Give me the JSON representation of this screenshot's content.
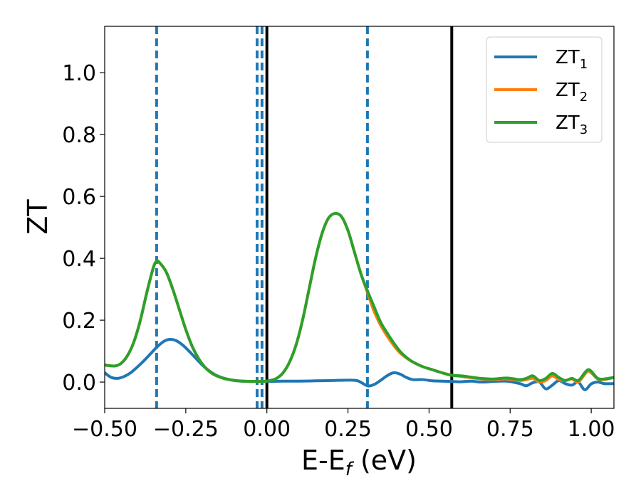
{
  "chart_data": {
    "type": "line",
    "xlabel": "E-E",
    "xlabel_sub": "f",
    "xlabel_unit": " (eV)",
    "ylabel": "ZT",
    "xlim": [
      -0.5,
      1.07
    ],
    "ylim": [
      -0.085,
      1.15
    ],
    "x_ticks": [
      -0.5,
      -0.25,
      0.0,
      0.25,
      0.5,
      0.75,
      1.0
    ],
    "x_tick_labels": [
      "−0.50",
      "−0.25",
      "0.00",
      "0.25",
      "0.50",
      "0.75",
      "1.00"
    ],
    "y_ticks": [
      0.0,
      0.2,
      0.4,
      0.6,
      0.8,
      1.0
    ],
    "y_tick_labels": [
      "0.0",
      "0.2",
      "0.4",
      "0.6",
      "0.8",
      "1.0"
    ],
    "grid": false,
    "legend_position": "top-right",
    "colors": {
      "ZT1": "#1f77b4",
      "ZT2": "#ff7f0e",
      "ZT3": "#2ca02c",
      "solid_line": "#000000",
      "dashed_line": "#1f77b4"
    },
    "solid_vlines": [
      0.0,
      0.57
    ],
    "dashed_vlines": [
      -0.34,
      -0.03,
      -0.015,
      0.31
    ],
    "series": [
      {
        "name": "ZT",
        "sub": "1",
        "color": "#1f77b4",
        "x": [
          -0.5,
          -0.48,
          -0.46,
          -0.44,
          -0.42,
          -0.4,
          -0.38,
          -0.36,
          -0.34,
          -0.32,
          -0.3,
          -0.28,
          -0.26,
          -0.24,
          -0.22,
          -0.2,
          -0.18,
          -0.16,
          -0.14,
          -0.12,
          -0.1,
          -0.08,
          -0.06,
          -0.04,
          -0.02,
          0.0,
          0.05,
          0.1,
          0.15,
          0.2,
          0.25,
          0.28,
          0.31,
          0.33,
          0.35,
          0.37,
          0.39,
          0.41,
          0.43,
          0.45,
          0.48,
          0.51,
          0.54,
          0.57,
          0.6,
          0.63,
          0.66,
          0.7,
          0.74,
          0.78,
          0.8,
          0.82,
          0.84,
          0.86,
          0.88,
          0.9,
          0.92,
          0.94,
          0.96,
          0.98,
          1.0,
          1.02,
          1.04,
          1.07
        ],
        "y": [
          0.03,
          0.015,
          0.012,
          0.018,
          0.03,
          0.048,
          0.068,
          0.09,
          0.112,
          0.13,
          0.138,
          0.134,
          0.12,
          0.1,
          0.078,
          0.056,
          0.038,
          0.024,
          0.015,
          0.009,
          0.005,
          0.003,
          0.002,
          0.002,
          0.002,
          0.002,
          0.003,
          0.003,
          0.004,
          0.005,
          0.006,
          0.004,
          -0.012,
          -0.008,
          0.005,
          0.02,
          0.03,
          0.026,
          0.015,
          0.008,
          0.008,
          0.004,
          0.003,
          0.002,
          0.001,
          0.003,
          0.0,
          0.002,
          0.003,
          -0.005,
          -0.012,
          -0.002,
          0.0,
          -0.022,
          -0.01,
          0.005,
          -0.005,
          -0.01,
          0.0,
          -0.025,
          -0.006,
          0.0,
          -0.005,
          -0.005
        ]
      },
      {
        "name": "ZT",
        "sub": "2",
        "color": "#ff7f0e",
        "x": [
          -0.5,
          -0.47,
          -0.45,
          -0.43,
          -0.41,
          -0.39,
          -0.37,
          -0.35,
          -0.34,
          -0.33,
          -0.31,
          -0.29,
          -0.27,
          -0.25,
          -0.23,
          -0.21,
          -0.19,
          -0.17,
          -0.15,
          -0.13,
          -0.11,
          -0.09,
          -0.07,
          -0.05,
          -0.03,
          -0.01,
          0.01,
          0.03,
          0.05,
          0.07,
          0.09,
          0.11,
          0.13,
          0.15,
          0.17,
          0.19,
          0.21,
          0.23,
          0.25,
          0.27,
          0.29,
          0.31,
          0.33,
          0.35,
          0.37,
          0.39,
          0.41,
          0.43,
          0.45,
          0.48,
          0.51,
          0.54,
          0.57,
          0.6,
          0.63,
          0.66,
          0.7,
          0.74,
          0.78,
          0.8,
          0.82,
          0.84,
          0.86,
          0.88,
          0.9,
          0.92,
          0.94,
          0.96,
          0.98,
          0.99,
          1.0,
          1.02,
          1.04,
          1.07
        ],
        "y": [
          0.055,
          0.052,
          0.06,
          0.085,
          0.13,
          0.2,
          0.29,
          0.37,
          0.39,
          0.385,
          0.355,
          0.3,
          0.235,
          0.17,
          0.115,
          0.075,
          0.047,
          0.029,
          0.018,
          0.011,
          0.007,
          0.004,
          0.003,
          0.002,
          0.002,
          0.002,
          0.005,
          0.012,
          0.03,
          0.065,
          0.12,
          0.2,
          0.3,
          0.4,
          0.48,
          0.53,
          0.545,
          0.535,
          0.49,
          0.42,
          0.35,
          0.29,
          0.23,
          0.185,
          0.15,
          0.12,
          0.095,
          0.078,
          0.065,
          0.05,
          0.04,
          0.03,
          0.022,
          0.018,
          0.014,
          0.01,
          0.008,
          0.01,
          0.005,
          0.008,
          0.012,
          0.0,
          0.005,
          0.02,
          0.008,
          0.005,
          0.01,
          0.0,
          0.025,
          0.035,
          0.03,
          0.01,
          0.008,
          0.015
        ]
      },
      {
        "name": "ZT",
        "sub": "3",
        "color": "#2ca02c",
        "x": [
          -0.5,
          -0.47,
          -0.45,
          -0.43,
          -0.41,
          -0.39,
          -0.37,
          -0.35,
          -0.34,
          -0.33,
          -0.31,
          -0.29,
          -0.27,
          -0.25,
          -0.23,
          -0.21,
          -0.19,
          -0.17,
          -0.15,
          -0.13,
          -0.11,
          -0.09,
          -0.07,
          -0.05,
          -0.03,
          -0.01,
          0.01,
          0.03,
          0.05,
          0.07,
          0.09,
          0.11,
          0.13,
          0.15,
          0.17,
          0.19,
          0.21,
          0.23,
          0.25,
          0.27,
          0.29,
          0.31,
          0.33,
          0.35,
          0.37,
          0.39,
          0.41,
          0.43,
          0.45,
          0.48,
          0.51,
          0.54,
          0.57,
          0.6,
          0.63,
          0.66,
          0.7,
          0.74,
          0.78,
          0.8,
          0.82,
          0.84,
          0.86,
          0.88,
          0.9,
          0.92,
          0.94,
          0.96,
          0.98,
          0.99,
          1.0,
          1.02,
          1.04,
          1.07
        ],
        "y": [
          0.055,
          0.052,
          0.06,
          0.085,
          0.13,
          0.2,
          0.29,
          0.37,
          0.39,
          0.385,
          0.355,
          0.3,
          0.235,
          0.17,
          0.115,
          0.075,
          0.047,
          0.029,
          0.018,
          0.011,
          0.007,
          0.004,
          0.003,
          0.002,
          0.002,
          0.002,
          0.005,
          0.012,
          0.03,
          0.065,
          0.12,
          0.2,
          0.3,
          0.4,
          0.48,
          0.53,
          0.545,
          0.535,
          0.49,
          0.42,
          0.35,
          0.295,
          0.245,
          0.195,
          0.16,
          0.128,
          0.1,
          0.08,
          0.065,
          0.05,
          0.04,
          0.03,
          0.022,
          0.02,
          0.016,
          0.012,
          0.01,
          0.013,
          0.008,
          0.012,
          0.02,
          0.005,
          0.012,
          0.028,
          0.015,
          0.005,
          0.012,
          0.005,
          0.03,
          0.04,
          0.035,
          0.012,
          0.01,
          0.015
        ]
      }
    ]
  }
}
